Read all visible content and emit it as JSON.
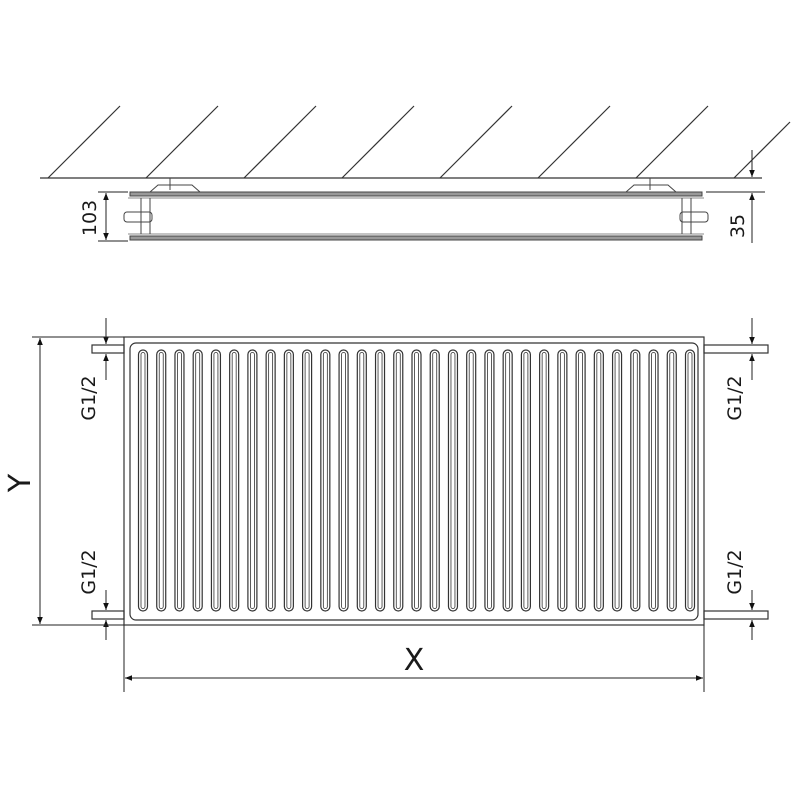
{
  "side_view": {
    "depth_label": "103",
    "wall_offset_label": "35"
  },
  "front_view": {
    "height_label": "Y",
    "width_label": "X",
    "connections": {
      "left_top": "G1/2",
      "left_bottom": "G1/2",
      "right_top": "G1/2",
      "right_bottom": "G1/2"
    },
    "fin_count": 31
  },
  "colors": {
    "line": "#333333",
    "rail": "#777777"
  }
}
